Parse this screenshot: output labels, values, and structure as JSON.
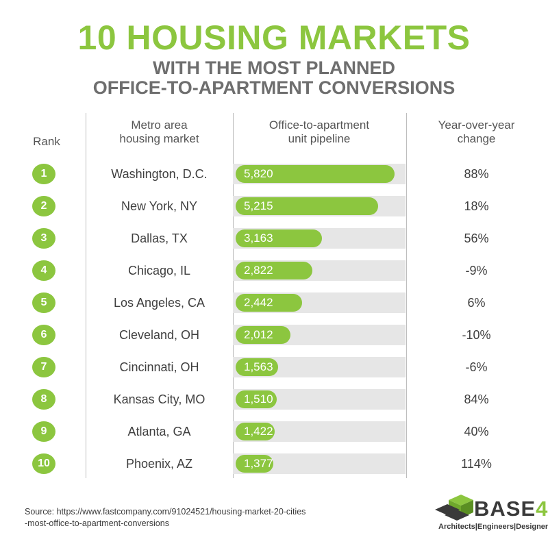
{
  "title": "10 HOUSING MARKETS",
  "subtitle_line1": "WITH THE MOST PLANNED",
  "subtitle_line2": "OFFICE-TO-APARTMENT CONVERSIONS",
  "headers": {
    "rank": "Rank",
    "metro_line1": "Metro area",
    "metro_line2": "housing market",
    "pipeline_line1": "Office-to-apartment",
    "pipeline_line2": "unit pipeline",
    "yoy_line1": "Year-over-year",
    "yoy_line2": "change"
  },
  "colors": {
    "accent": "#8cc63f",
    "title": "#8cc63f",
    "subtitle": "#6e6e6e",
    "track": "#e6e6e6",
    "divider": "#bdbdbd"
  },
  "chart_data": {
    "type": "bar",
    "categories": [
      "Washington, D.C.",
      "New York, NY",
      "Dallas, TX",
      "Chicago, IL",
      "Los Angeles, CA",
      "Cleveland, OH",
      "Cincinnati, OH",
      "Kansas City, MO",
      "Atlanta, GA",
      "Phoenix, AZ"
    ],
    "values": [
      5820,
      5215,
      3163,
      2822,
      2442,
      2012,
      1563,
      1510,
      1422,
      1377
    ],
    "value_labels": [
      "5,820",
      "5,215",
      "3,163",
      "2,822",
      "2,442",
      "2,012",
      "1,563",
      "1,510",
      "1,422",
      "1,377"
    ],
    "ranks": [
      "1",
      "2",
      "3",
      "4",
      "5",
      "6",
      "7",
      "8",
      "9",
      "10"
    ],
    "yoy_change": [
      "88%",
      "18%",
      "56%",
      "-9%",
      "6%",
      "-10%",
      "-6%",
      "84%",
      "40%",
      "114%"
    ],
    "orientation": "horizontal",
    "title": "10 HOUSING MARKETS",
    "xlabel": "Office-to-apartment unit pipeline",
    "ylabel": "Metro area housing market"
  },
  "source": {
    "label": "Source:",
    "url_line1": "https://www.fastcompany.com/91024521/housing-market-20-cities",
    "url_line2": "-most-office-to-apartment-conversions"
  },
  "logo": {
    "brand_text": "BASE",
    "brand_number": "4",
    "tagline": "Architects|Engineers|Designers"
  }
}
